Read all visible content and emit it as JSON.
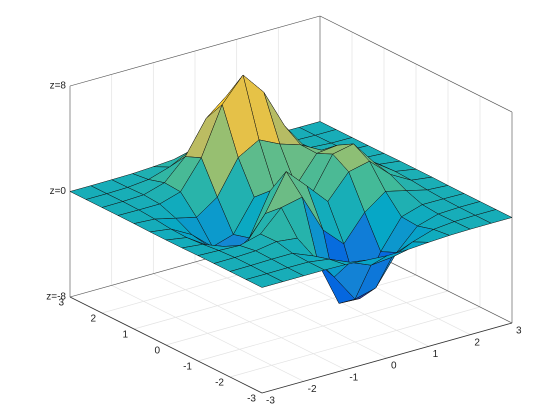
{
  "chart_data": {
    "type": "surface",
    "x": [
      -3,
      -2.5,
      -2,
      -1.5,
      -1,
      -0.5,
      0,
      0.5,
      1,
      1.5,
      2,
      2.5,
      3
    ],
    "y": [
      -3,
      -2.5,
      -2,
      -1.5,
      -1,
      -0.5,
      0,
      0.5,
      1,
      1.5,
      2,
      2.5,
      3
    ],
    "z": [
      [
        0,
        0,
        0,
        0,
        -0.03,
        -0.14,
        -0.24,
        -0.22,
        -0.11,
        -0.03,
        0,
        0,
        0
      ],
      [
        0,
        0,
        0.01,
        0,
        -0.23,
        -0.91,
        -1.57,
        -1.41,
        -0.69,
        -0.18,
        -0.03,
        0,
        0
      ],
      [
        0,
        0.01,
        0.05,
        0.05,
        -0.59,
        -2.63,
        -4.75,
        -4.34,
        -2.1,
        -0.53,
        -0.06,
        0,
        0
      ],
      [
        0,
        0.01,
        0.08,
        0.33,
        0.15,
        -2.19,
        -5.68,
        -5.76,
        -2.64,
        -0.44,
        0.04,
        0.03,
        0
      ],
      [
        -0.01,
        -0.06,
        -0.13,
        0.3,
        1.86,
        2.22,
        -0.72,
        -2.22,
        -0.27,
        0.88,
        0.5,
        0.11,
        0.01
      ],
      [
        -0.03,
        -0.2,
        -0.8,
        -1.21,
        0.8,
        3.55,
        2,
        0.39,
        2.2,
        2.56,
        1.12,
        0.24,
        0.03
      ],
      [
        -0.04,
        -0.3,
        -1.33,
        -2.77,
        -1.65,
        1.48,
        0.98,
        0.37,
        2.94,
        3.27,
        1.41,
        0.3,
        0.03
      ],
      [
        -0.03,
        -0.25,
        -1.12,
        -2.49,
        -2,
        0.39,
        0.46,
        0.38,
        2.38,
        2.56,
        1.09,
        0.23,
        0.03
      ],
      [
        -0.01,
        -0.11,
        -0.48,
        -0.86,
        0.23,
        2.79,
        3.69,
        2.93,
        2.43,
        1.58,
        0.58,
        0.11,
        0.01
      ],
      [
        0,
        -0.02,
        -0.01,
        0.47,
        2.61,
        6.2,
        8,
        6.25,
        3.25,
        1.19,
        0.29,
        0.05,
        0
      ],
      [
        0,
        0.01,
        0.08,
        0.55,
        2.09,
        4.55,
        5.85,
        4.56,
        2.21,
        0.68,
        0.13,
        0.02,
        0
      ],
      [
        0,
        0,
        0.03,
        0.19,
        0.69,
        1.47,
        1.88,
        1.47,
        0.7,
        0.2,
        0.04,
        0,
        0
      ],
      [
        0,
        0,
        0.01,
        0.03,
        0.11,
        0.23,
        0.3,
        0.23,
        0.11,
        0.03,
        0.01,
        0,
        0
      ]
    ],
    "xlim": [
      -3,
      3
    ],
    "ylim": [
      -3,
      3
    ],
    "zlim": [
      -8,
      8
    ],
    "xticks": [
      -3,
      -2,
      -1,
      0,
      1,
      2,
      3
    ],
    "yticks": [
      -3,
      -2,
      -1,
      0,
      1,
      2,
      3
    ],
    "zticks": [
      {
        "value": -8,
        "label": "z=-8"
      },
      {
        "value": 0,
        "label": "z=0"
      },
      {
        "value": 8,
        "label": "z=8"
      }
    ],
    "colormap": [
      "#352a87",
      "#0363e1",
      "#1485d4",
      "#06a7c6",
      "#38b99e",
      "#92bf73",
      "#d9ba56",
      "#fcce2e",
      "#f9fb0e"
    ],
    "grid": true
  }
}
